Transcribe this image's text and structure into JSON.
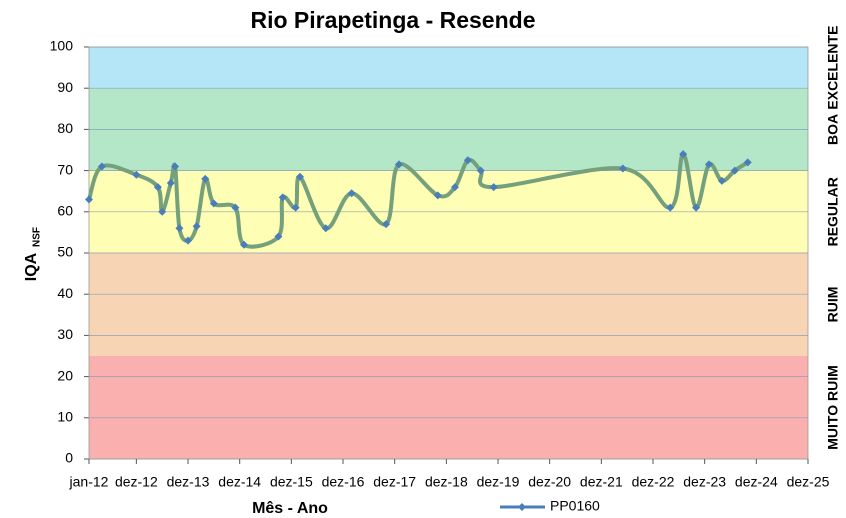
{
  "chart_data": {
    "type": "line",
    "title": "Rio Pirapetinga - Resende",
    "xlabel": "Mês - Ano",
    "ylabel": "IQA",
    "ylabel_sub": "NSF",
    "x": [
      "2012-01",
      "2012-04",
      "2012-12",
      "2013-05",
      "2013-06",
      "2013-08",
      "2013-09",
      "2013-10",
      "2013-12",
      "2014-02",
      "2014-04",
      "2014-06",
      "2014-11",
      "2015-01",
      "2015-09",
      "2015-10",
      "2016-01",
      "2016-02",
      "2016-08",
      "2017-02",
      "2017-10",
      "2018-01",
      "2018-10",
      "2019-02",
      "2019-05",
      "2019-08",
      "2019-11",
      "2022-05",
      "2023-04",
      "2023-07",
      "2023-10",
      "2024-01",
      "2024-04",
      "2024-07",
      "2024-10"
    ],
    "series": [
      {
        "name": "PP0160",
        "color": "#4a7ebb",
        "line_color": "#74a07c",
        "values": [
          63,
          71,
          69,
          66,
          60,
          67,
          71,
          56,
          53,
          56.5,
          68,
          62,
          61,
          52,
          54,
          63.5,
          61,
          68.5,
          56,
          64.5,
          57,
          71.5,
          64,
          66,
          72.5,
          70,
          66,
          70.5,
          61,
          74,
          61,
          71.5,
          67.5,
          70,
          72
        ]
      }
    ],
    "xlim": [
      "2012-01",
      "2025-12"
    ],
    "xticks": [
      {
        "value": "2012-01",
        "label": "jan-12"
      },
      {
        "value": "2012-12",
        "label": "dez-12"
      },
      {
        "value": "2013-12",
        "label": "dez-13"
      },
      {
        "value": "2014-12",
        "label": "dez-14"
      },
      {
        "value": "2015-12",
        "label": "dez-15"
      },
      {
        "value": "2016-12",
        "label": "dez-16"
      },
      {
        "value": "2017-12",
        "label": "dez-17"
      },
      {
        "value": "2018-12",
        "label": "dez-18"
      },
      {
        "value": "2019-12",
        "label": "dez-19"
      },
      {
        "value": "2020-12",
        "label": "dez-20"
      },
      {
        "value": "2021-12",
        "label": "dez-21"
      },
      {
        "value": "2022-12",
        "label": "dez-22"
      },
      {
        "value": "2023-12",
        "label": "dez-23"
      },
      {
        "value": "2024-12",
        "label": "dez-24"
      },
      {
        "value": "2025-12",
        "label": "dez-25"
      }
    ],
    "ylim": [
      0,
      100
    ],
    "yticks": [
      0,
      10,
      20,
      30,
      40,
      50,
      60,
      70,
      80,
      90,
      100
    ],
    "bands": [
      {
        "from": 0,
        "to": 25,
        "label": "MUITO RUIM",
        "color": "#fbb0b0"
      },
      {
        "from": 25,
        "to": 50,
        "label": "RUIM",
        "color": "#f6d4b4"
      },
      {
        "from": 50,
        "to": 70,
        "label": "REGULAR",
        "color": "#fefeb4"
      },
      {
        "from": 70,
        "to": 90,
        "label": "BOA",
        "color": "#b4e6c8"
      },
      {
        "from": 90,
        "to": 100,
        "label": "EXCELENTE",
        "color": "#b4e6f8"
      }
    ]
  }
}
